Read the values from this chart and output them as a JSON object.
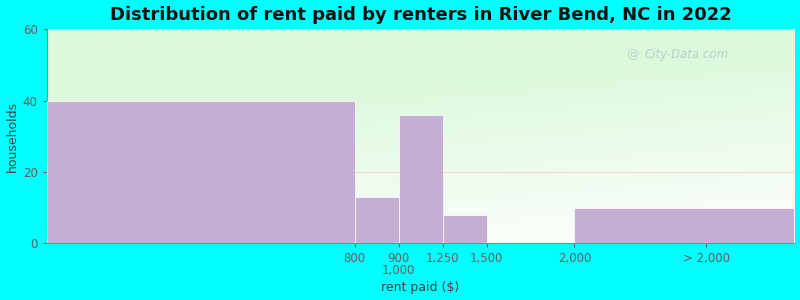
{
  "title": "Distribution of rent paid by renters in River Bend, NC in 2022",
  "xlabel": "rent paid ($)",
  "ylabel": "households",
  "bar_heights": [
    40,
    13,
    36,
    8,
    0,
    10
  ],
  "bar_color": "#c4aed4",
  "background_color": "#00ffff",
  "ylim": [
    0,
    60
  ],
  "yticks": [
    0,
    20,
    40,
    60
  ],
  "title_fontsize": 13,
  "axis_label_fontsize": 9,
  "tick_fontsize": 8.5,
  "watermark": "City-Data.com",
  "bin_edges": [
    0,
    3.5,
    4.0,
    4.5,
    5.0,
    6.0,
    8.5
  ],
  "tick_positions": [
    3.5,
    4.0,
    4.5,
    5.0,
    6.0,
    7.5
  ],
  "tick_labels": [
    "800",
    "900\n1,000",
    "1,250",
    "1,500",
    "2,000",
    "> 2,000"
  ]
}
